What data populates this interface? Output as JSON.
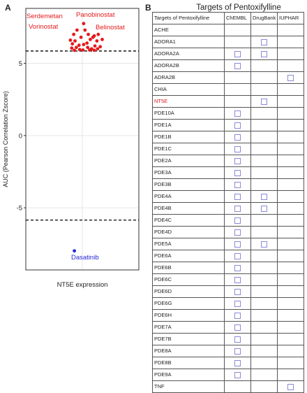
{
  "panels": {
    "a_letter": "A",
    "b_letter": "B"
  },
  "chart_data": {
    "type": "scatter",
    "xlabel": "NT5E expression",
    "ylabel": "AUC (Pearson Correlation Zscore)",
    "ylim": [
      -9.3,
      8.8
    ],
    "y_ticks": [
      -5,
      0,
      5
    ],
    "grid": true,
    "thresholds": [
      5.85,
      -5.85
    ],
    "colors": {
      "positive": "#e41a1c",
      "negative": "#2626d6",
      "threshold": "#000000",
      "grid": "#e6e6e6"
    },
    "labels": [
      {
        "text": "Serdemetan",
        "series": "positive"
      },
      {
        "text": "Panobinostat",
        "series": "positive"
      },
      {
        "text": "Vorinostat",
        "series": "positive"
      },
      {
        "text": "Belinostat",
        "series": "positive"
      },
      {
        "text": "Dasatinib",
        "series": "negative"
      }
    ],
    "series": [
      {
        "group": "positive",
        "points": [
          [
            0.02,
            7.75
          ],
          [
            -0.08,
            7.3
          ],
          [
            0.04,
            7.3
          ],
          [
            0.09,
            7.0
          ],
          [
            -0.13,
            7.0
          ],
          [
            -0.02,
            6.8
          ],
          [
            0.16,
            6.8
          ],
          [
            0.24,
            7.0
          ],
          [
            0.18,
            6.9
          ],
          [
            0.12,
            6.65
          ],
          [
            -0.18,
            6.6
          ],
          [
            -0.11,
            6.55
          ],
          [
            0.22,
            6.55
          ],
          [
            0.3,
            6.65
          ],
          [
            -0.15,
            6.35
          ],
          [
            -0.05,
            6.25
          ],
          [
            0.02,
            6.3
          ],
          [
            0.07,
            6.4
          ],
          [
            0.19,
            6.2
          ],
          [
            0.27,
            6.15
          ],
          [
            -0.16,
            6.05
          ],
          [
            -0.09,
            6.1
          ],
          [
            0.08,
            6.1
          ],
          [
            0.14,
            6.0
          ],
          [
            0.23,
            6.0
          ],
          [
            -0.12,
            5.9
          ],
          [
            -0.04,
            5.95
          ],
          [
            0.01,
            5.92
          ],
          [
            0.11,
            5.92
          ],
          [
            0.18,
            5.9
          ]
        ]
      },
      {
        "group": "negative",
        "points": [
          [
            -0.12,
            -7.98
          ]
        ]
      }
    ]
  },
  "table": {
    "title": "Targets of Pentoxifylline",
    "headers": [
      "Targets of Pentoxifylline",
      "ChEMBL",
      "DrugBank",
      "IUPHAR"
    ],
    "highlight_gene": "NT5E",
    "highlight_color": "#e41a1c",
    "rows": [
      {
        "gene": "ACHE",
        "chembl": false,
        "drugbank": false,
        "iuphar": false
      },
      {
        "gene": "ADORA1",
        "chembl": false,
        "drugbank": true,
        "iuphar": false
      },
      {
        "gene": "ADORA2A",
        "chembl": true,
        "drugbank": true,
        "iuphar": false
      },
      {
        "gene": "ADORA2B",
        "chembl": true,
        "drugbank": false,
        "iuphar": false
      },
      {
        "gene": "ADRA2B",
        "chembl": false,
        "drugbank": false,
        "iuphar": true
      },
      {
        "gene": "CHIA",
        "chembl": false,
        "drugbank": false,
        "iuphar": false
      },
      {
        "gene": "NT5E",
        "chembl": false,
        "drugbank": true,
        "iuphar": false
      },
      {
        "gene": "PDE10A",
        "chembl": true,
        "drugbank": false,
        "iuphar": false
      },
      {
        "gene": "PDE1A",
        "chembl": true,
        "drugbank": false,
        "iuphar": false
      },
      {
        "gene": "PDE1B",
        "chembl": true,
        "drugbank": false,
        "iuphar": false
      },
      {
        "gene": "PDE1C",
        "chembl": true,
        "drugbank": false,
        "iuphar": false
      },
      {
        "gene": "PDE2A",
        "chembl": true,
        "drugbank": false,
        "iuphar": false
      },
      {
        "gene": "PDE3A",
        "chembl": true,
        "drugbank": false,
        "iuphar": false
      },
      {
        "gene": "PDE3B",
        "chembl": true,
        "drugbank": false,
        "iuphar": false
      },
      {
        "gene": "PDE4A",
        "chembl": true,
        "drugbank": true,
        "iuphar": false
      },
      {
        "gene": "PDE4B",
        "chembl": true,
        "drugbank": true,
        "iuphar": false
      },
      {
        "gene": "PDE4C",
        "chembl": true,
        "drugbank": false,
        "iuphar": false
      },
      {
        "gene": "PDE4D",
        "chembl": true,
        "drugbank": false,
        "iuphar": false
      },
      {
        "gene": "PDE5A",
        "chembl": true,
        "drugbank": true,
        "iuphar": false
      },
      {
        "gene": "PDE6A",
        "chembl": true,
        "drugbank": false,
        "iuphar": false
      },
      {
        "gene": "PDE6B",
        "chembl": true,
        "drugbank": false,
        "iuphar": false
      },
      {
        "gene": "PDE6C",
        "chembl": true,
        "drugbank": false,
        "iuphar": false
      },
      {
        "gene": "PDE6D",
        "chembl": true,
        "drugbank": false,
        "iuphar": false
      },
      {
        "gene": "PDE6G",
        "chembl": true,
        "drugbank": false,
        "iuphar": false
      },
      {
        "gene": "PDE6H",
        "chembl": true,
        "drugbank": false,
        "iuphar": false
      },
      {
        "gene": "PDE7A",
        "chembl": true,
        "drugbank": false,
        "iuphar": false
      },
      {
        "gene": "PDE7B",
        "chembl": true,
        "drugbank": false,
        "iuphar": false
      },
      {
        "gene": "PDE8A",
        "chembl": true,
        "drugbank": false,
        "iuphar": false
      },
      {
        "gene": "PDE8B",
        "chembl": true,
        "drugbank": false,
        "iuphar": false
      },
      {
        "gene": "PDE9A",
        "chembl": true,
        "drugbank": false,
        "iuphar": false
      },
      {
        "gene": "TNF",
        "chembl": false,
        "drugbank": false,
        "iuphar": true
      }
    ]
  }
}
